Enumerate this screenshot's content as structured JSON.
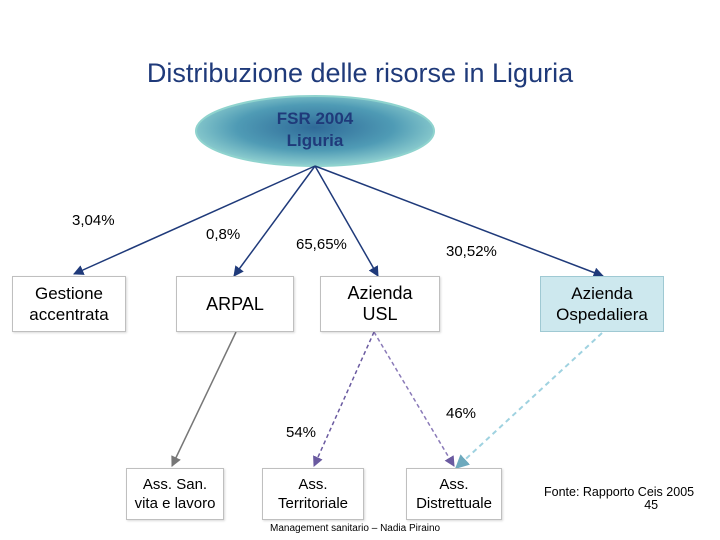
{
  "title": "Distribuzione delle risorse in Liguria",
  "root": {
    "line1": "FSR 2004",
    "line2": "Liguria"
  },
  "nodes": {
    "gestione": {
      "line1": "Gestione",
      "line2": "accentrata"
    },
    "arpal": {
      "label": "ARPAL"
    },
    "usl": {
      "line1": "Azienda",
      "line2": "USL"
    },
    "ospedaliera": {
      "line1": "Azienda",
      "line2": "Ospedaliera"
    },
    "ass_san": {
      "line1": "Ass. San.",
      "line2": "vita e lavoro"
    },
    "ass_terr": {
      "line1": "Ass.",
      "line2": "Territoriale"
    },
    "ass_distr": {
      "line1": "Ass.",
      "line2": "Distrettuale"
    }
  },
  "percentages": {
    "gestione": "3,04%",
    "arpal": "0,8%",
    "usl": "65,65%",
    "ospedaliera": "30,52%",
    "territoriale": "54%",
    "distrettuale": "46%"
  },
  "colors": {
    "title": "#1f3a7a",
    "ellipse_center": "#2a5f8f",
    "ellipse_edge": "#93d8d4",
    "arrow": "#1f3a7a",
    "grey_arrow": "#888888",
    "dashed_arrow": "#9fd2e0",
    "cyan_box": "#cde8ee"
  },
  "footer": "Management sanitario – Nadia Piraino",
  "source": {
    "text": "Fonte: Rapporto Ceis 2005",
    "page": "45"
  }
}
